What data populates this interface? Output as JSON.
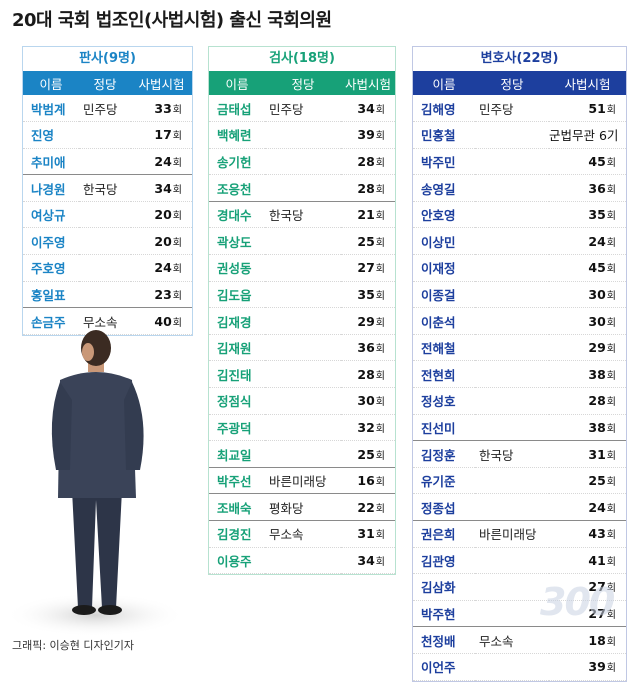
{
  "title": "20대 국회 법조인(사법시험) 출신 국회의원",
  "credit": "그래픽: 이승현 디자인기자",
  "watermark": "300",
  "columns": {
    "name": "이름",
    "party": "정당",
    "exam": "사법시험"
  },
  "sections": {
    "judge": {
      "title": "판사(9명)",
      "rows": [
        {
          "name": "박범계",
          "party": "민주당",
          "exam": "33",
          "unit": "회"
        },
        {
          "name": "진영",
          "party": "",
          "exam": "17",
          "unit": "회"
        },
        {
          "name": "추미애",
          "party": "",
          "exam": "24",
          "unit": "회"
        },
        {
          "name": "나경원",
          "party": "한국당",
          "exam": "34",
          "unit": "회",
          "sep": true
        },
        {
          "name": "여상규",
          "party": "",
          "exam": "20",
          "unit": "회"
        },
        {
          "name": "이주영",
          "party": "",
          "exam": "20",
          "unit": "회"
        },
        {
          "name": "주호영",
          "party": "",
          "exam": "24",
          "unit": "회"
        },
        {
          "name": "홍일표",
          "party": "",
          "exam": "23",
          "unit": "회"
        },
        {
          "name": "손금주",
          "party": "무소속",
          "exam": "40",
          "unit": "회",
          "sep": true
        }
      ]
    },
    "prosecutor": {
      "title": "검사(18명)",
      "rows": [
        {
          "name": "금태섭",
          "party": "민주당",
          "exam": "34",
          "unit": "회"
        },
        {
          "name": "백혜련",
          "party": "",
          "exam": "39",
          "unit": "회"
        },
        {
          "name": "송기헌",
          "party": "",
          "exam": "28",
          "unit": "회"
        },
        {
          "name": "조응천",
          "party": "",
          "exam": "28",
          "unit": "회"
        },
        {
          "name": "경대수",
          "party": "한국당",
          "exam": "21",
          "unit": "회",
          "sep": true
        },
        {
          "name": "곽상도",
          "party": "",
          "exam": "25",
          "unit": "회"
        },
        {
          "name": "권성동",
          "party": "",
          "exam": "27",
          "unit": "회"
        },
        {
          "name": "김도읍",
          "party": "",
          "exam": "35",
          "unit": "회"
        },
        {
          "name": "김재경",
          "party": "",
          "exam": "29",
          "unit": "회"
        },
        {
          "name": "김재원",
          "party": "",
          "exam": "36",
          "unit": "회"
        },
        {
          "name": "김진태",
          "party": "",
          "exam": "28",
          "unit": "회"
        },
        {
          "name": "정점식",
          "party": "",
          "exam": "30",
          "unit": "회"
        },
        {
          "name": "주광덕",
          "party": "",
          "exam": "32",
          "unit": "회"
        },
        {
          "name": "최교일",
          "party": "",
          "exam": "25",
          "unit": "회"
        },
        {
          "name": "박주선",
          "party": "바른미래당",
          "exam": "16",
          "unit": "회",
          "sep": true
        },
        {
          "name": "조배숙",
          "party": "평화당",
          "exam": "22",
          "unit": "회",
          "sep": true
        },
        {
          "name": "김경진",
          "party": "무소속",
          "exam": "31",
          "unit": "회",
          "sep": true
        },
        {
          "name": "이용주",
          "party": "",
          "exam": "34",
          "unit": "회"
        }
      ]
    },
    "lawyer": {
      "title": "변호사(22명)",
      "rows": [
        {
          "name": "김해영",
          "party": "민주당",
          "exam": "51",
          "unit": "회"
        },
        {
          "name": "민홍철",
          "party": "",
          "exam": "군법무관 6기",
          "unit": ""
        },
        {
          "name": "박주민",
          "party": "",
          "exam": "45",
          "unit": "회"
        },
        {
          "name": "송영길",
          "party": "",
          "exam": "36",
          "unit": "회"
        },
        {
          "name": "안호영",
          "party": "",
          "exam": "35",
          "unit": "회"
        },
        {
          "name": "이상민",
          "party": "",
          "exam": "24",
          "unit": "회"
        },
        {
          "name": "이재정",
          "party": "",
          "exam": "45",
          "unit": "회"
        },
        {
          "name": "이종걸",
          "party": "",
          "exam": "30",
          "unit": "회"
        },
        {
          "name": "이춘석",
          "party": "",
          "exam": "30",
          "unit": "회"
        },
        {
          "name": "전해철",
          "party": "",
          "exam": "29",
          "unit": "회"
        },
        {
          "name": "전현희",
          "party": "",
          "exam": "38",
          "unit": "회"
        },
        {
          "name": "정성호",
          "party": "",
          "exam": "28",
          "unit": "회"
        },
        {
          "name": "진선미",
          "party": "",
          "exam": "38",
          "unit": "회"
        },
        {
          "name": "김정훈",
          "party": "한국당",
          "exam": "31",
          "unit": "회",
          "sep": true
        },
        {
          "name": "유기준",
          "party": "",
          "exam": "25",
          "unit": "회"
        },
        {
          "name": "정종섭",
          "party": "",
          "exam": "24",
          "unit": "회"
        },
        {
          "name": "권은희",
          "party": "바른미래당",
          "exam": "43",
          "unit": "회",
          "sep": true
        },
        {
          "name": "김관영",
          "party": "",
          "exam": "41",
          "unit": "회"
        },
        {
          "name": "김삼화",
          "party": "",
          "exam": "27",
          "unit": "회"
        },
        {
          "name": "박주현",
          "party": "",
          "exam": "27",
          "unit": "회"
        },
        {
          "name": "천정배",
          "party": "무소속",
          "exam": "18",
          "unit": "회",
          "sep": true
        },
        {
          "name": "이언주",
          "party": "",
          "exam": "39",
          "unit": "회"
        }
      ]
    }
  }
}
